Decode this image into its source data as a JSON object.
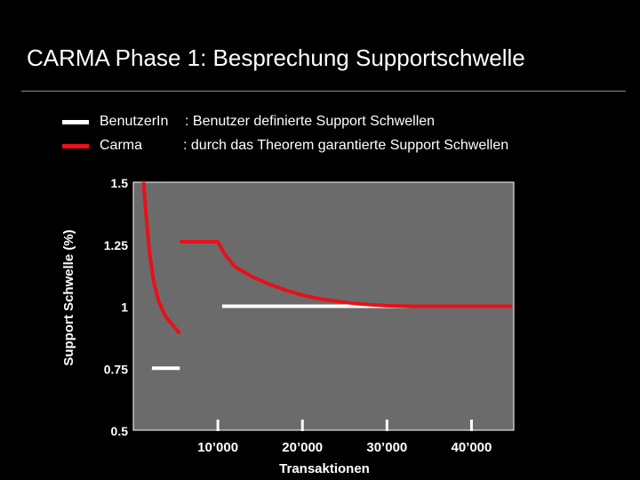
{
  "colors": {
    "background": "#000000",
    "plot_area": "#6b6b6b",
    "white_series": "#ffffff",
    "red_series": "#e8101a"
  },
  "title": "CARMA Phase 1: Besprechung Supportschwelle",
  "legend": [
    {
      "name": "BenutzerIn",
      "description": ": Benutzer definierte Support Schwellen",
      "color": "#ffffff"
    },
    {
      "name": "Carma",
      "description": ": durch das Theorem garantierte Support Schwellen",
      "color": "#e8101a"
    }
  ],
  "chart_data": {
    "type": "line",
    "title": "",
    "xlabel": "Transaktionen",
    "ylabel": "Support Schwelle (%)",
    "xlim": [
      0,
      45000
    ],
    "ylim": [
      0.5,
      1.5
    ],
    "x_ticks": [
      10000,
      20000,
      30000,
      40000
    ],
    "x_tick_labels": [
      "10’000",
      "20’000",
      "30’000",
      "40’000"
    ],
    "y_ticks": [
      0.5,
      0.75,
      1,
      1.25,
      1.5
    ],
    "y_tick_labels": [
      "0.5",
      "0.75",
      "1",
      "1.25",
      "1.5"
    ],
    "grid": false,
    "legend_position": "top",
    "series": [
      {
        "name": "BenutzerIn",
        "color": "#ffffff",
        "segments": [
          [
            [
              2200,
              0.75
            ],
            [
              5500,
              0.75
            ]
          ],
          [
            [
              10500,
              1.0
            ],
            [
              44800,
              1.0
            ]
          ]
        ]
      },
      {
        "name": "Carma",
        "color": "#e8101a",
        "segments": [
          [
            [
              1200,
              1.5
            ],
            [
              1500,
              1.37
            ],
            [
              1900,
              1.22
            ],
            [
              2400,
              1.1
            ],
            [
              3000,
              1.02
            ],
            [
              3800,
              0.96
            ],
            [
              4500,
              0.93
            ],
            [
              5500,
              0.89
            ]
          ],
          [
            [
              5500,
              1.26
            ],
            [
              10000,
              1.26
            ],
            [
              10800,
              1.21
            ],
            [
              12000,
              1.16
            ],
            [
              14000,
              1.12
            ],
            [
              16000,
              1.09
            ],
            [
              18000,
              1.065
            ],
            [
              20000,
              1.045
            ],
            [
              22000,
              1.03
            ],
            [
              24000,
              1.02
            ],
            [
              26000,
              1.012
            ],
            [
              28000,
              1.006
            ],
            [
              30000,
              1.002
            ],
            [
              33000,
              1.0
            ],
            [
              44800,
              1.0
            ]
          ]
        ]
      }
    ]
  }
}
